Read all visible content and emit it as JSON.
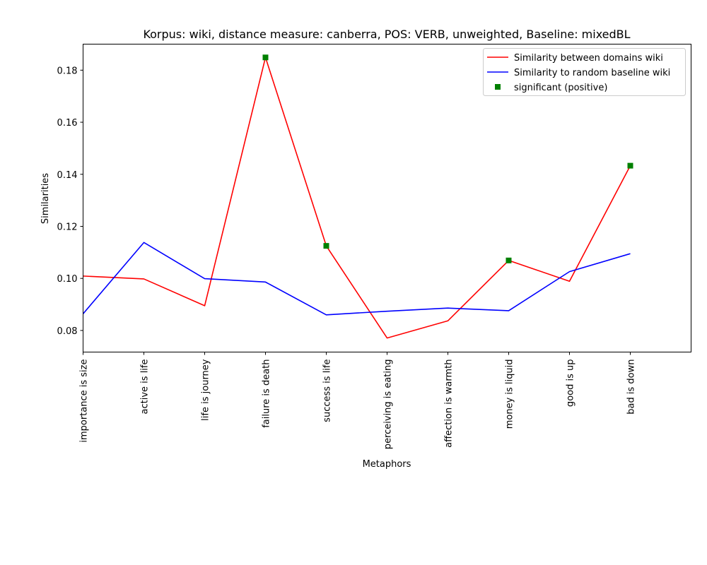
{
  "chart_data": {
    "type": "line",
    "title": "Korpus: wiki, distance measure: canberra, POS: VERB, unweighted, Baseline: mixedBL",
    "xlabel": "Metaphors",
    "ylabel": "Similarities",
    "categories": [
      "importance is size",
      "active is life",
      "life is journey",
      "failure is death",
      "success is life",
      "perceiving is eating",
      "affection is warmth",
      "money is liquid",
      "good is up",
      "bad is down"
    ],
    "xlim": [
      0,
      10
    ],
    "ylim": [
      0.0717,
      0.19
    ],
    "yticks": [
      0.08,
      0.1,
      0.12,
      0.14,
      0.16,
      0.18
    ],
    "ytick_labels": [
      "0.08",
      "0.10",
      "0.12",
      "0.14",
      "0.16",
      "0.18"
    ],
    "series": [
      {
        "name": "Similarity between domains wiki",
        "color": "#ff0000",
        "marker": "line",
        "values": [
          0.1009,
          0.0998,
          0.0895,
          0.1849,
          0.1125,
          0.0771,
          0.0837,
          0.1069,
          0.0989,
          0.1433
        ]
      },
      {
        "name": "Similarity to random baseline wiki",
        "color": "#0000ff",
        "marker": "line",
        "values": [
          0.0864,
          0.1138,
          0.0999,
          0.0986,
          0.086,
          0.0874,
          0.0886,
          0.0876,
          0.1026,
          0.1095
        ]
      },
      {
        "name": "significant (positive)",
        "color": "#008000",
        "marker": "square",
        "points": [
          {
            "x": 3,
            "y": 0.1849
          },
          {
            "x": 4,
            "y": 0.1125
          },
          {
            "x": 7,
            "y": 0.1069
          },
          {
            "x": 9,
            "y": 0.1433
          }
        ]
      }
    ],
    "legend_position": "top-right"
  }
}
